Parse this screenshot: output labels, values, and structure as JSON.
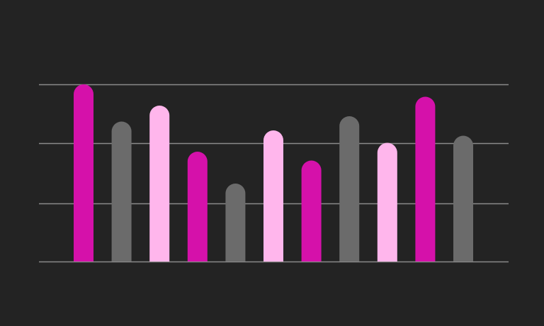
{
  "chart_data": {
    "type": "bar",
    "values": [
      100,
      79,
      88,
      62,
      44,
      74,
      57,
      82,
      67,
      93,
      71
    ],
    "ylim": [
      0,
      100
    ],
    "gridlines": [
      0,
      33,
      67,
      100
    ],
    "grid": true,
    "axis_labels_visible": false,
    "bar_colors": [
      "#d511aa",
      "#6b6b6b",
      "#ffb6ec",
      "#d511aa",
      "#6b6b6b",
      "#ffb6ec",
      "#d511aa",
      "#6b6b6b",
      "#ffb6ec",
      "#d511aa",
      "#6b6b6b"
    ]
  },
  "style": {
    "background": "#232323",
    "grid_color": "#8a8a8a"
  }
}
